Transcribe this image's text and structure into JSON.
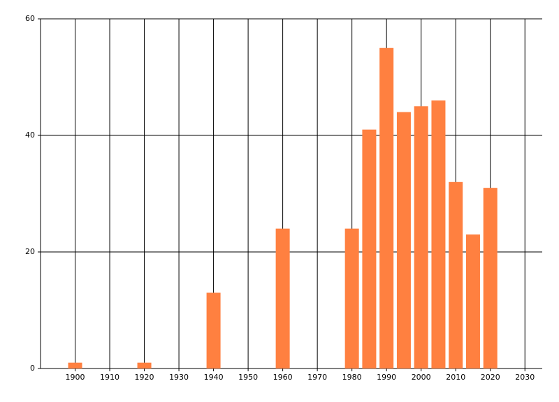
{
  "chart_data": {
    "type": "bar",
    "x": [
      1900,
      1920,
      1940,
      1960,
      1980,
      1985,
      1990,
      1995,
      2000,
      2005,
      2010,
      2015,
      2020
    ],
    "values": [
      1,
      1,
      13,
      24,
      24,
      41,
      55,
      44,
      45,
      46,
      32,
      23,
      31
    ],
    "color": "#ff8040",
    "xlim": [
      1890,
      2035
    ],
    "xticks": [
      1900,
      1910,
      1920,
      1930,
      1940,
      1950,
      1960,
      1970,
      1980,
      1990,
      2000,
      2010,
      2020,
      2030
    ],
    "ylim": [
      0,
      60
    ],
    "yticks": [
      0,
      20,
      40,
      60
    ],
    "grid": true
  }
}
